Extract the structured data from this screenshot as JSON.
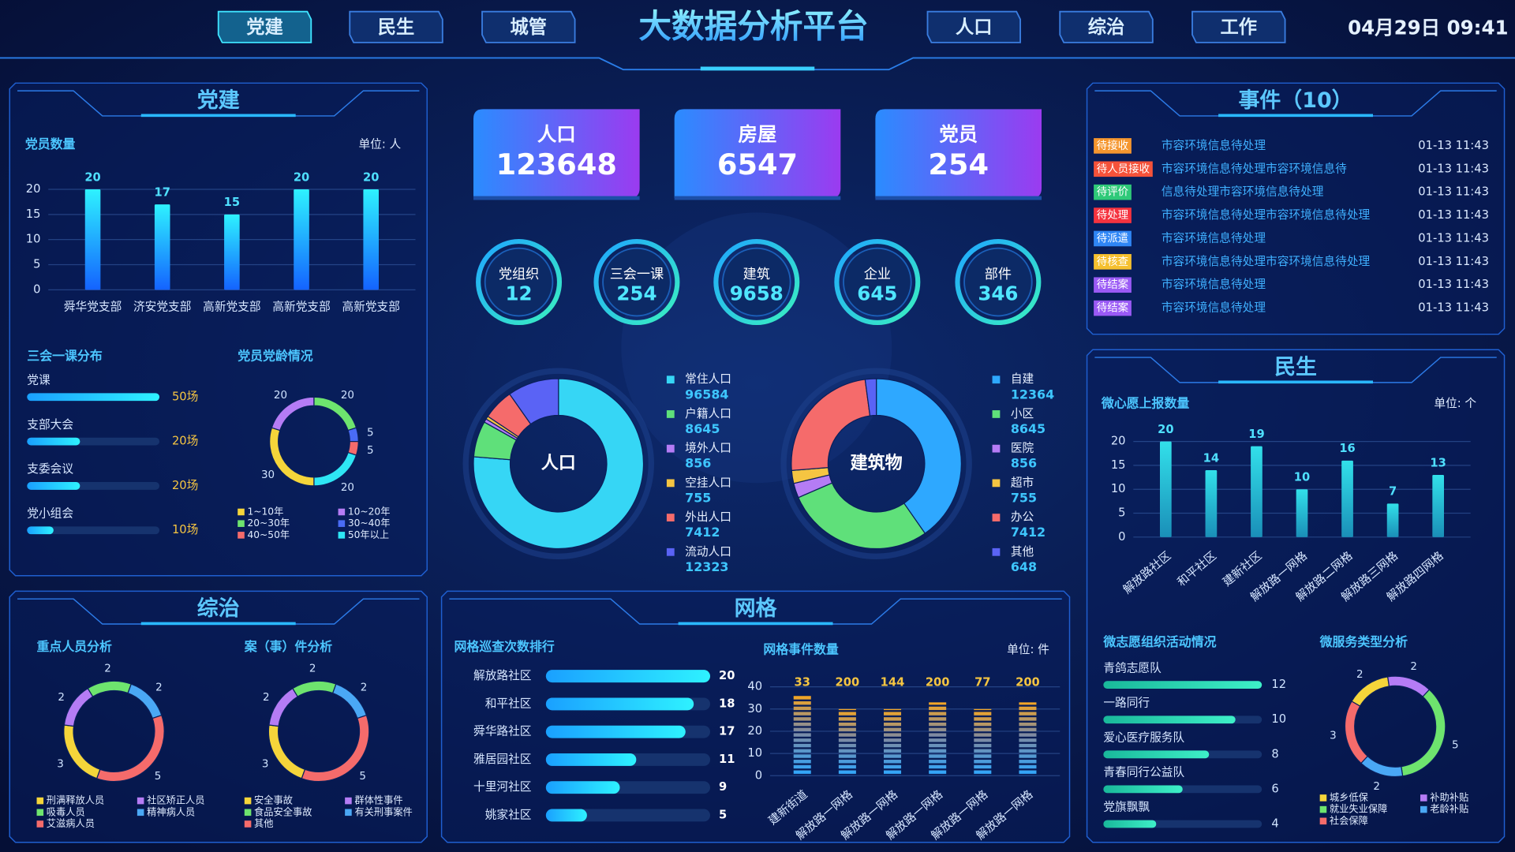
{
  "header": {
    "title": "大数据分析平台",
    "nav_left": [
      "党建",
      "民生",
      "城管"
    ],
    "nav_right": [
      "人口",
      "综治",
      "工作"
    ],
    "datetime": "04月29日 09:41"
  },
  "panels": {
    "party": "党建",
    "governance": "综治",
    "grid": "网格",
    "events": "事件（10）",
    "livelihood": "民生"
  },
  "stats": [
    {
      "label": "人口",
      "value": 123648
    },
    {
      "label": "房屋",
      "value": 6547
    },
    {
      "label": "党员",
      "value": 254
    }
  ],
  "rings": [
    {
      "label": "党组织",
      "value": 12
    },
    {
      "label": "三会一课",
      "value": 254
    },
    {
      "label": "建筑",
      "value": 9658
    },
    {
      "label": "企业",
      "value": 645
    },
    {
      "label": "部件",
      "value": 346
    }
  ],
  "events": {
    "rows": [
      {
        "status": "待接收",
        "color": "#f5962f",
        "text": "市容环境信息待处理",
        "time": "01-13 11:43"
      },
      {
        "status": "待人员接收",
        "color": "#f5523a",
        "text": "市容环境信息待处理市容环境信息待",
        "time": "01-13 11:43"
      },
      {
        "status": "待评价",
        "color": "#2fc979",
        "text": "信息待处理市容环境信息待处理",
        "time": "01-13 11:43"
      },
      {
        "status": "待处理",
        "color": "#f5333f",
        "text": "市容环境信息待处理市容环境信息待处理",
        "time": "01-13 11:43"
      },
      {
        "status": "待派遣",
        "color": "#2f86f5",
        "text": "市容环境信息待处理",
        "time": "01-13 11:43"
      },
      {
        "status": "待核查",
        "color": "#f5c02f",
        "text": "市容环境信息待处理市容环境信息待处理",
        "time": "01-13 11:43"
      },
      {
        "status": "待结案",
        "color": "#9a5af5",
        "text": "市容环境信息待处理",
        "time": "01-13 11:43"
      },
      {
        "status": "待结案",
        "color": "#9a5af5",
        "text": "市容环境信息待处理",
        "time": "01-13 11:43"
      }
    ]
  },
  "chart_data": [
    {
      "type": "bar",
      "title": "党员数量",
      "unit": "单位: 人",
      "categories": [
        "舜华党支部",
        "济安党支部",
        "高新党支部",
        "高新党支部",
        "高新党支部"
      ],
      "values": [
        20,
        17,
        15,
        20,
        20
      ],
      "ylim": [
        0,
        20
      ],
      "yticks": [
        0,
        5,
        10,
        15,
        20
      ],
      "grid": true
    },
    {
      "type": "hbar",
      "title": "三会一课分布",
      "categories": [
        "党课",
        "支部大会",
        "支委会议",
        "党小组会"
      ],
      "values": [
        50,
        20,
        20,
        10
      ],
      "value_labels": [
        "50场",
        "20场",
        "20场",
        "10场"
      ],
      "xlim": [
        0,
        50
      ]
    },
    {
      "type": "donut",
      "title": "党员党龄情况",
      "categories": [
        "1~10年",
        "10~20年",
        "20~30年",
        "30~40年",
        "40~50年",
        "50年以上"
      ],
      "values": [
        30,
        20,
        20,
        5,
        5,
        20
      ],
      "colors": [
        "#f5d53a",
        "#b57cf5",
        "#6ee46e",
        "#4a6cf5",
        "#f56b6b",
        "#2ee6f5"
      ]
    },
    {
      "type": "donut",
      "title": "人口",
      "categories": [
        "常住人口",
        "户籍人口",
        "境外人口",
        "空挂人口",
        "外出人口",
        "流动人口"
      ],
      "values": [
        96584,
        8645,
        856,
        755,
        7412,
        12323
      ],
      "colors": [
        "#36d6f5",
        "#5fe07a",
        "#b57cf5",
        "#f5c542",
        "#f56b6b",
        "#5a63f5"
      ]
    },
    {
      "type": "donut",
      "title": "建筑物",
      "categories": [
        "自建",
        "小区",
        "医院",
        "超市",
        "办公",
        "其他"
      ],
      "values": [
        12364,
        8645,
        856,
        755,
        7412,
        648
      ],
      "colors": [
        "#2ea8ff",
        "#5fe07a",
        "#b57cf5",
        "#f5c542",
        "#f56b6b",
        "#5a63f5"
      ]
    },
    {
      "type": "bar",
      "title": "微心愿上报数量",
      "unit": "单位: 个",
      "categories": [
        "解放路社区",
        "和平社区",
        "建新社区",
        "解放路一网格",
        "解放路二网格",
        "解放路三网格",
        "解放路四网格"
      ],
      "values": [
        20,
        14,
        19,
        10,
        16,
        7,
        13
      ],
      "ylim": [
        0,
        20
      ],
      "yticks": [
        0,
        5,
        10,
        15,
        20
      ],
      "grid": true
    },
    {
      "type": "hbar",
      "title": "微志愿组织活动情况",
      "categories": [
        "青鸽志愿队",
        "一路同行",
        "爱心医疗服务队",
        "青春同行公益队",
        "党旗飘飘"
      ],
      "values": [
        12,
        10,
        8,
        6,
        4
      ],
      "xlim": [
        0,
        12
      ]
    },
    {
      "type": "donut",
      "title": "微服务类型分析",
      "categories": [
        "城乡低保",
        "补助补贴",
        "就业失业保障",
        "老龄补贴",
        "社会保障"
      ],
      "values": [
        2,
        2,
        5,
        2,
        3
      ],
      "colors": [
        "#f5d53a",
        "#b57cf5",
        "#6ee46e",
        "#4aa8f5",
        "#f56b6b"
      ]
    },
    {
      "type": "donut",
      "title": "重点人员分析",
      "categories": [
        "刑满释放人员",
        "社区矫正人员",
        "吸毒人员",
        "精神病人员",
        "艾滋病人员"
      ],
      "values": [
        3,
        2,
        2,
        2,
        5
      ],
      "colors": [
        "#f5d53a",
        "#b57cf5",
        "#6ee46e",
        "#4aa8f5",
        "#f56b6b"
      ]
    },
    {
      "type": "donut",
      "title": "案（事）件分析",
      "categories": [
        "安全事故",
        "群体性事件",
        "食品安全事故",
        "有关刑事案件",
        "其他"
      ],
      "values": [
        3,
        2,
        2,
        2,
        5
      ],
      "colors": [
        "#f5d53a",
        "#b57cf5",
        "#6ee46e",
        "#4aa8f5",
        "#f56b6b"
      ]
    },
    {
      "type": "hbar",
      "title": "网格巡查次数排行",
      "categories": [
        "解放路社区",
        "和平社区",
        "舜华路社区",
        "雅居园社区",
        "十里河社区",
        "姚家社区"
      ],
      "values": [
        20,
        18,
        17,
        11,
        9,
        5
      ],
      "xlim": [
        0,
        20
      ]
    },
    {
      "type": "bar",
      "title": "网格事件数量",
      "unit": "单位: 件",
      "categories": [
        "建新街道",
        "解放路一网格",
        "解放路一网格",
        "解放路一网格",
        "解放路一网格",
        "解放路一网格"
      ],
      "values": [
        36,
        30,
        30,
        33,
        30,
        33
      ],
      "annotations": [
        "33",
        "200",
        "144",
        "200",
        "77",
        "200"
      ],
      "ylim": [
        0,
        40
      ],
      "yticks": [
        0,
        10,
        20,
        30,
        40
      ],
      "grid": true,
      "segmented": true
    }
  ]
}
